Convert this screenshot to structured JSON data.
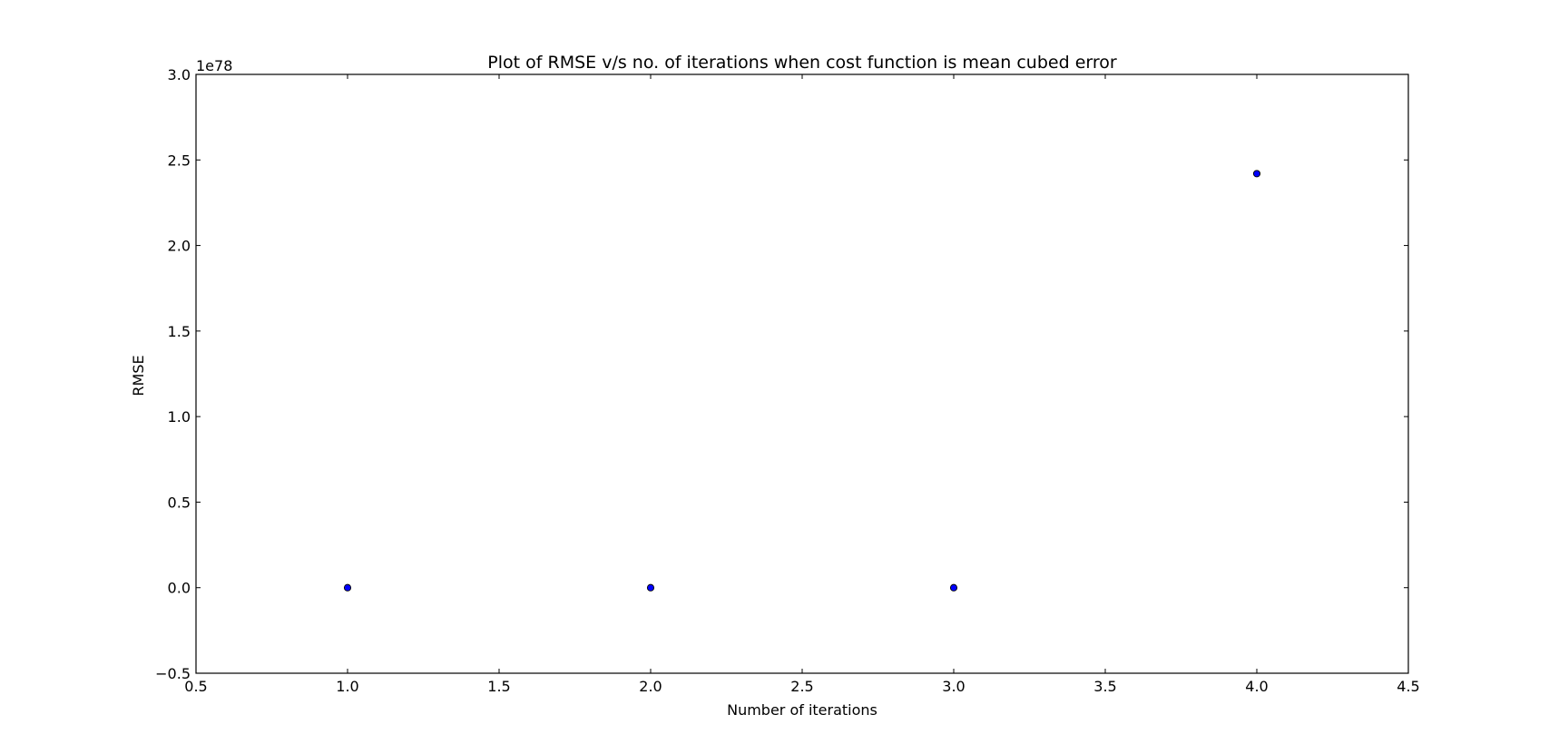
{
  "chart_data": {
    "type": "scatter",
    "title": "Plot of RMSE v/s no. of iterations when cost function is mean cubed error",
    "xlabel": "Number of iterations",
    "ylabel": "RMSE",
    "y_scale_label": "1e78",
    "xlim": [
      0.5,
      4.5
    ],
    "ylim": [
      -0.5,
      3.0
    ],
    "xticks": [
      0.5,
      1.0,
      1.5,
      2.0,
      2.5,
      3.0,
      3.5,
      4.0,
      4.5
    ],
    "xtick_labels": [
      "0.5",
      "1.0",
      "1.5",
      "2.0",
      "2.5",
      "3.0",
      "3.5",
      "4.0",
      "4.5"
    ],
    "yticks": [
      -0.5,
      0.0,
      0.5,
      1.0,
      1.5,
      2.0,
      2.5,
      3.0
    ],
    "ytick_labels": [
      "−0.5",
      "0.0",
      "0.5",
      "1.0",
      "1.5",
      "2.0",
      "2.5",
      "3.0"
    ],
    "grid": false,
    "legend": "none",
    "series": [
      {
        "x": [
          1,
          2,
          3,
          4
        ],
        "y": [
          0.0,
          0.0,
          0.0,
          2.42
        ],
        "color": "#0000ff"
      }
    ]
  }
}
